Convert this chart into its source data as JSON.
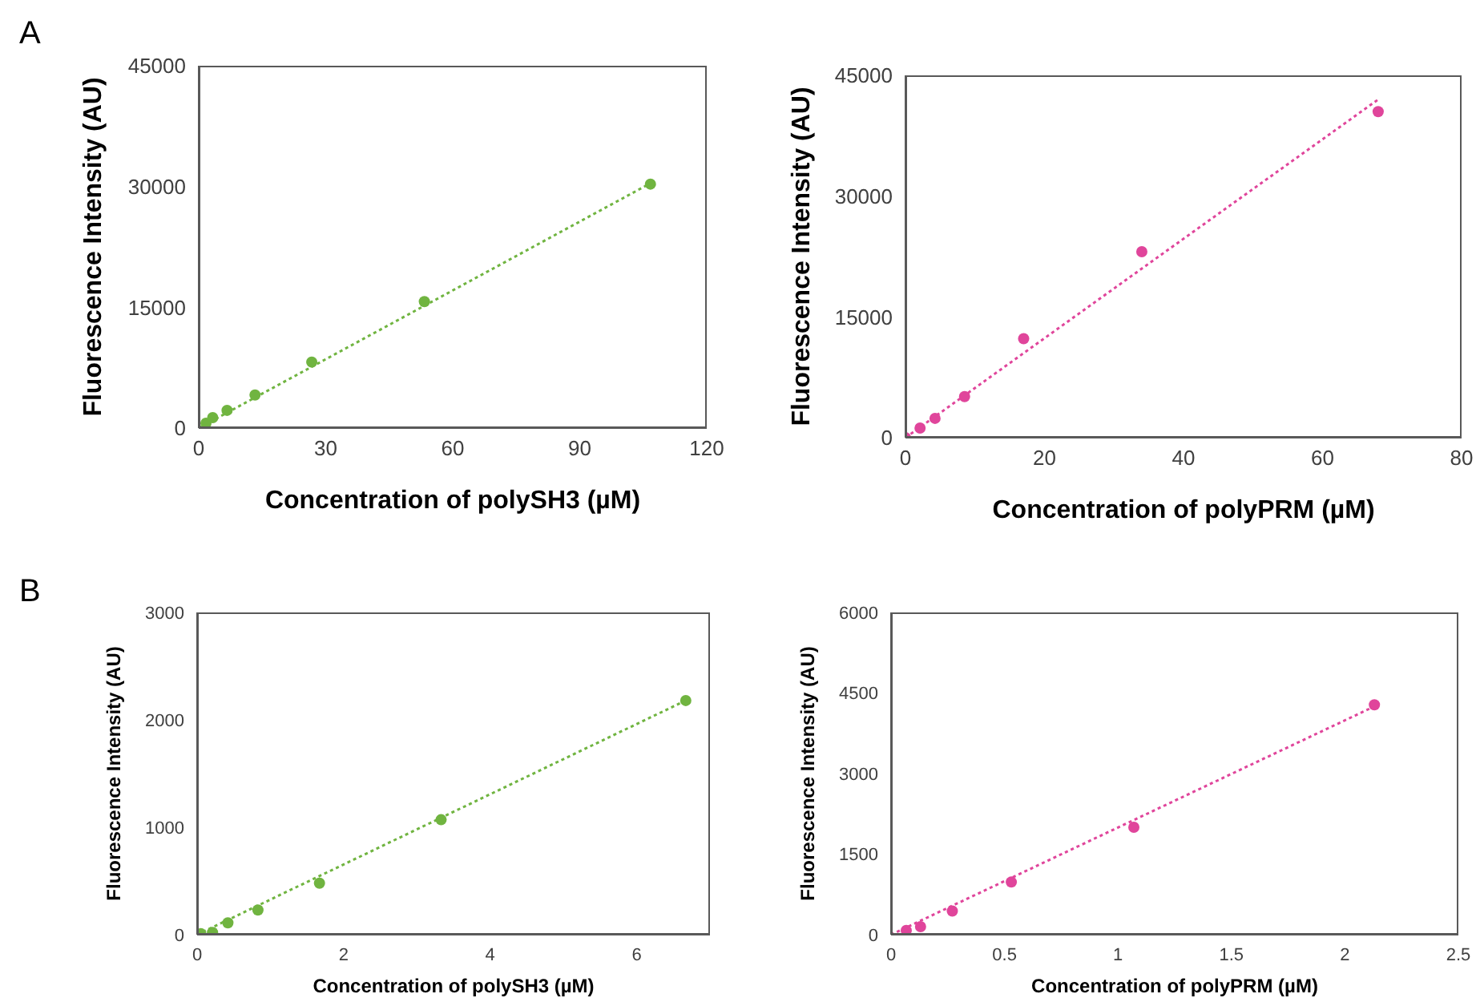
{
  "chart_data": [
    {
      "type": "scatter",
      "annotations": [
        "A"
      ],
      "xlabel": "Concentration of polySH3 (µM)",
      "ylabel": "Fluorescence Intensity (AU)",
      "xlim": [
        0,
        120
      ],
      "xticks": [
        0,
        30,
        60,
        90,
        120
      ],
      "ylim": [
        0,
        45000
      ],
      "yticks": [
        0,
        15000,
        30000,
        45000
      ],
      "marker": "circle",
      "series": [
        {
          "type": "scatter",
          "color": "#70b440",
          "x": [
            1.7,
            3.3,
            6.7,
            13.3,
            26.7,
            53.3,
            106.7
          ],
          "values": [
            600,
            1300,
            2200,
            4100,
            8200,
            15700,
            30300
          ]
        },
        {
          "type": "line",
          "color": "#70b440",
          "line_style": "dotted",
          "marker": "none",
          "x": [
            0,
            106.7
          ],
          "values": [
            0,
            30400
          ]
        }
      ]
    },
    {
      "type": "scatter",
      "xlabel": "Concentration of polyPRM (µM)",
      "ylabel": "Fluorescence Intensity (AU)",
      "xlim": [
        0,
        80
      ],
      "xticks": [
        0,
        20,
        40,
        60,
        80
      ],
      "ylim": [
        0,
        45000
      ],
      "yticks": [
        0,
        15000,
        30000,
        45000
      ],
      "marker": "circle",
      "series": [
        {
          "type": "scatter",
          "color": "#e0459b",
          "x": [
            0,
            2.1,
            4.25,
            8.5,
            17,
            34,
            68
          ],
          "values": [
            0,
            1200,
            2400,
            5100,
            12300,
            23100,
            40500
          ]
        },
        {
          "type": "line",
          "color": "#e0459b",
          "line_style": "dotted",
          "marker": "none",
          "x": [
            0,
            68
          ],
          "values": [
            0,
            42000
          ]
        }
      ]
    },
    {
      "type": "scatter",
      "annotations": [
        "B"
      ],
      "xlabel": "Concentration of polySH3 (µM)",
      "ylabel": "Fluorescence Intensity (AU)",
      "xlim": [
        0,
        7
      ],
      "xticks": [
        0,
        2,
        4,
        6
      ],
      "ylim": [
        0,
        3000
      ],
      "yticks": [
        0,
        1000,
        2000,
        3000
      ],
      "marker": "circle",
      "series": [
        {
          "type": "scatter",
          "color": "#70b440",
          "x": [
            0.05,
            0.21,
            0.42,
            0.83,
            1.67,
            3.33,
            6.67
          ],
          "values": [
            10,
            20,
            110,
            230,
            480,
            1070,
            2180
          ]
        },
        {
          "type": "line",
          "color": "#70b440",
          "line_style": "dotted",
          "marker": "none",
          "x": [
            0,
            6.67
          ],
          "values": [
            0,
            2180
          ]
        }
      ]
    },
    {
      "type": "scatter",
      "xlabel": "Concentration of polyPRM (µM)",
      "ylabel": "Fluorescence Intensity (AU)",
      "xlim": [
        0,
        2.5
      ],
      "xticks": [
        0,
        0.5,
        1,
        1.5,
        2,
        2.5
      ],
      "ylim": [
        0,
        6000
      ],
      "yticks": [
        0,
        1500,
        3000,
        4500,
        6000
      ],
      "marker": "circle",
      "series": [
        {
          "type": "scatter",
          "color": "#e0459b",
          "x": [
            0.067,
            0.13,
            0.27,
            0.53,
            1.07,
            2.13
          ],
          "values": [
            80,
            150,
            440,
            980,
            2000,
            4280
          ]
        },
        {
          "type": "line",
          "color": "#e0459b",
          "line_style": "dotted",
          "marker": "none",
          "x": [
            0,
            2.13
          ],
          "values": [
            0,
            4250
          ]
        }
      ]
    }
  ]
}
